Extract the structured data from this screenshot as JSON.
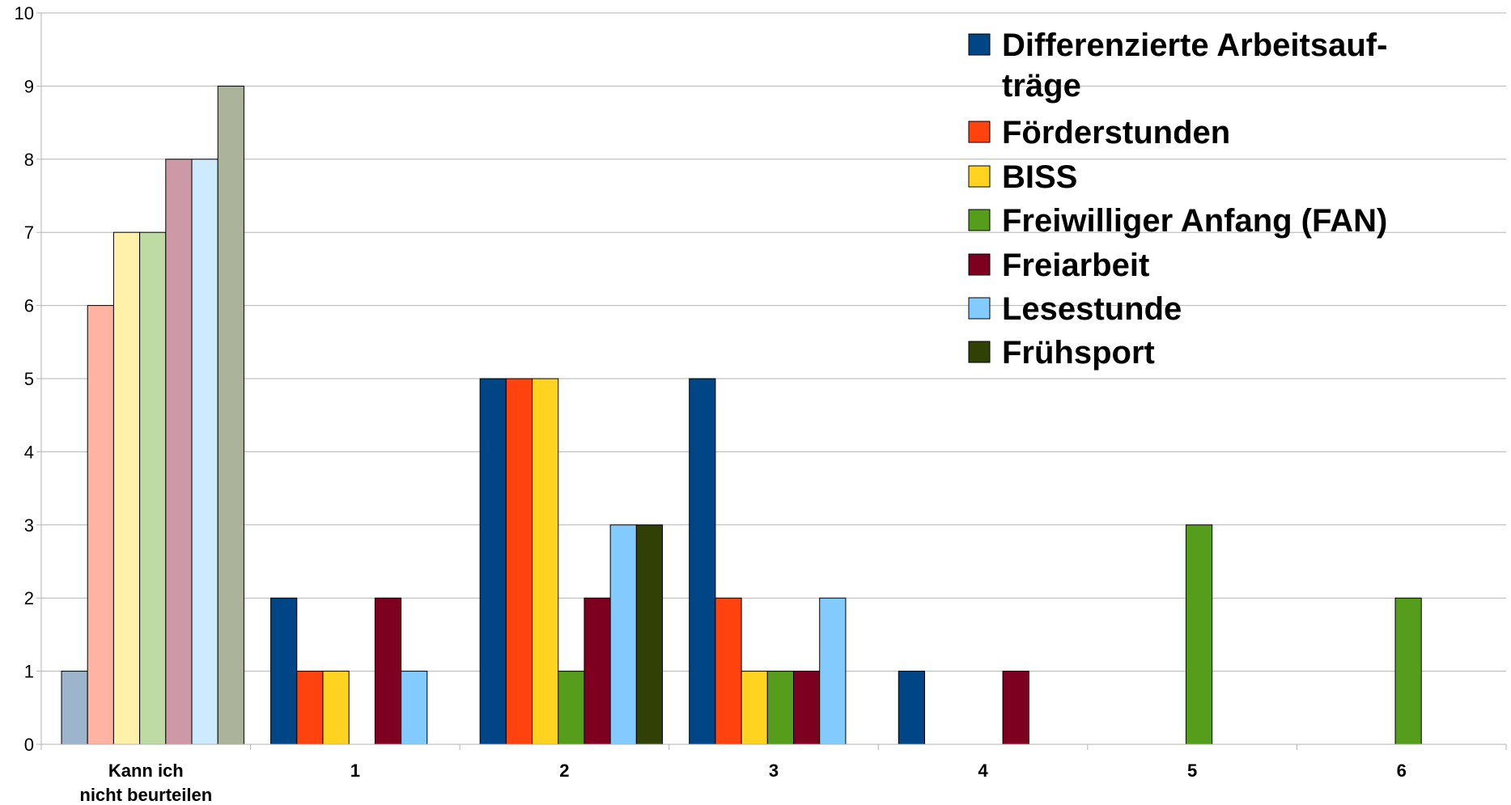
{
  "chart_data": {
    "type": "bar",
    "categories": [
      [
        "Kann ich",
        "nicht beurteilen"
      ],
      [
        "1"
      ],
      [
        "2"
      ],
      [
        "3"
      ],
      [
        "4"
      ],
      [
        "5"
      ],
      [
        "6"
      ]
    ],
    "ylim": [
      0,
      10
    ],
    "yticks": [
      0,
      1,
      2,
      3,
      4,
      5,
      6,
      7,
      8,
      9,
      10
    ],
    "grid": true,
    "legend_position": "top-right",
    "series": [
      {
        "name": "Differenzierte Arbeitsauf-",
        "name_line2": "träge",
        "color": "#004586",
        "values": [
          1,
          2,
          5,
          5,
          1,
          0,
          0
        ]
      },
      {
        "name": "Förderstunden",
        "color": "#ff420e",
        "values": [
          6,
          1,
          5,
          2,
          0,
          0,
          0
        ]
      },
      {
        "name": "BISS",
        "color": "#ffd320",
        "values": [
          7,
          1,
          5,
          1,
          0,
          0,
          0
        ]
      },
      {
        "name": "Freiwilliger Anfang (FAN)",
        "color": "#579d1c",
        "values": [
          7,
          0,
          1,
          1,
          0,
          3,
          2
        ]
      },
      {
        "name": "Freiarbeit",
        "color": "#7e0021",
        "values": [
          8,
          2,
          2,
          1,
          1,
          0,
          0
        ]
      },
      {
        "name": "Lesestunde",
        "color": "#83caff",
        "values": [
          8,
          1,
          3,
          2,
          0,
          0,
          0
        ]
      },
      {
        "name": "Frühsport",
        "color": "#314004",
        "values": [
          9,
          0,
          3,
          0,
          0,
          0,
          0
        ]
      }
    ],
    "first_category_faded_colors": [
      "#9cb4cc",
      "#ffb3a2",
      "#fff1a9",
      "#bddba3",
      "#cd99a6",
      "#cdeaff",
      "#acb39b"
    ]
  }
}
